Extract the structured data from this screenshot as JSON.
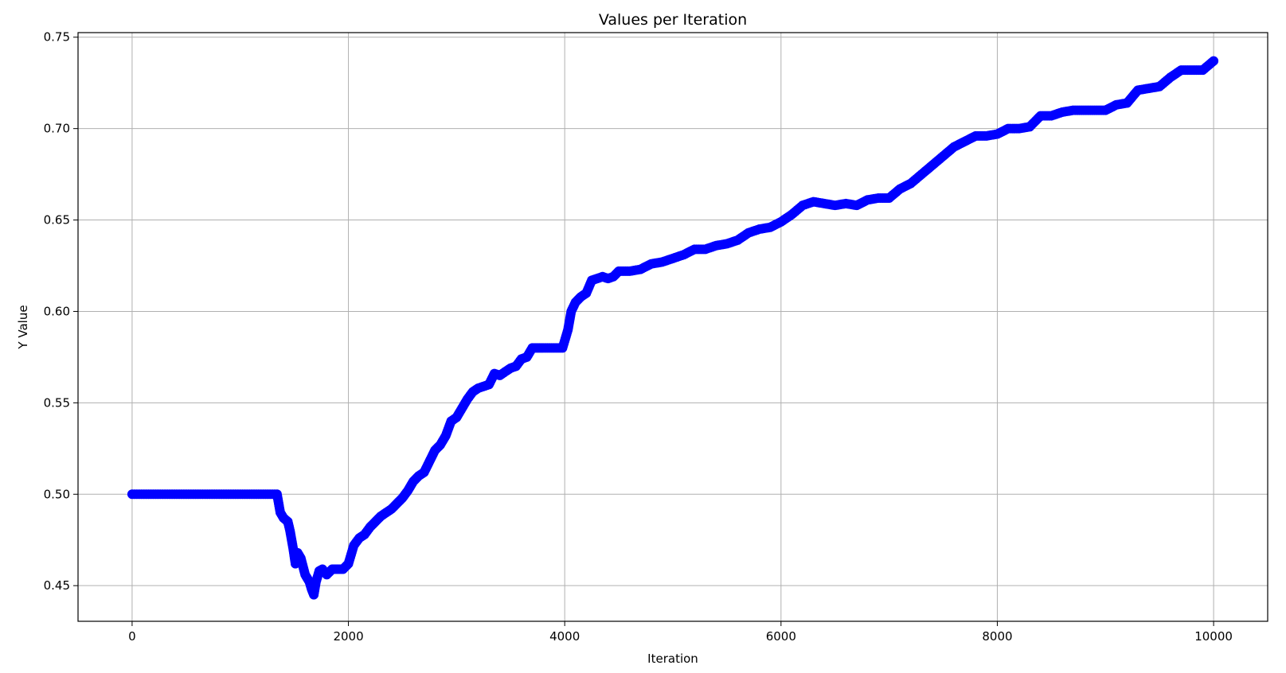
{
  "chart_data": {
    "type": "scatter",
    "title": "Values per Iteration",
    "xlabel": "Iteration",
    "ylabel": "Y Value",
    "xlim": [
      -500,
      10500
    ],
    "ylim": [
      0.4305,
      0.7525
    ],
    "xticks": [
      0,
      2000,
      4000,
      6000,
      8000,
      10000
    ],
    "xtick_labels": [
      "0",
      "2000",
      "4000",
      "6000",
      "8000",
      "10000"
    ],
    "yticks": [
      0.45,
      0.5,
      0.55,
      0.6,
      0.65,
      0.7,
      0.75
    ],
    "ytick_labels": [
      "0.45",
      "0.50",
      "0.55",
      "0.60",
      "0.65",
      "0.70",
      "0.75"
    ],
    "grid": true,
    "marker_color": "#0000ff",
    "series": [
      {
        "x": [
          0,
          500,
          1000,
          1340,
          1370,
          1400,
          1440,
          1460,
          1490,
          1510,
          1530,
          1560,
          1600,
          1640,
          1660,
          1680,
          1700,
          1730,
          1760,
          1800,
          1850,
          1900,
          1950,
          2000,
          2050,
          2100,
          2150,
          2200,
          2250,
          2300,
          2350,
          2400,
          2450,
          2500,
          2550,
          2600,
          2650,
          2700,
          2750,
          2800,
          2850,
          2900,
          2950,
          3000,
          3050,
          3100,
          3150,
          3200,
          3300,
          3350,
          3400,
          3450,
          3500,
          3550,
          3600,
          3650,
          3700,
          3750,
          3800,
          3900,
          3980,
          4030,
          4060,
          4100,
          4150,
          4200,
          4250,
          4300,
          4350,
          4400,
          4450,
          4500,
          4600,
          4700,
          4800,
          4900,
          5000,
          5100,
          5200,
          5300,
          5400,
          5500,
          5600,
          5700,
          5800,
          5900,
          6000,
          6100,
          6200,
          6300,
          6400,
          6500,
          6600,
          6700,
          6800,
          6900,
          7000,
          7100,
          7200,
          7300,
          7400,
          7500,
          7600,
          7700,
          7800,
          7900,
          8000,
          8100,
          8200,
          8300,
          8400,
          8500,
          8600,
          8700,
          8800,
          8900,
          9000,
          9100,
          9200,
          9300,
          9400,
          9500,
          9600,
          9700,
          9800,
          9900,
          10000
        ],
        "y": [
          0.5,
          0.5,
          0.5,
          0.5,
          0.49,
          0.487,
          0.485,
          0.48,
          0.47,
          0.462,
          0.468,
          0.465,
          0.456,
          0.452,
          0.448,
          0.445,
          0.452,
          0.458,
          0.459,
          0.456,
          0.459,
          0.459,
          0.459,
          0.462,
          0.472,
          0.476,
          0.478,
          0.482,
          0.485,
          0.488,
          0.49,
          0.492,
          0.495,
          0.498,
          0.502,
          0.507,
          0.51,
          0.512,
          0.518,
          0.524,
          0.527,
          0.532,
          0.54,
          0.542,
          0.547,
          0.552,
          0.556,
          0.558,
          0.56,
          0.566,
          0.565,
          0.567,
          0.569,
          0.57,
          0.574,
          0.575,
          0.58,
          0.58,
          0.58,
          0.58,
          0.58,
          0.59,
          0.6,
          0.605,
          0.608,
          0.61,
          0.617,
          0.618,
          0.619,
          0.618,
          0.619,
          0.622,
          0.622,
          0.623,
          0.626,
          0.627,
          0.629,
          0.631,
          0.634,
          0.634,
          0.636,
          0.637,
          0.639,
          0.643,
          0.645,
          0.646,
          0.649,
          0.653,
          0.658,
          0.66,
          0.659,
          0.658,
          0.659,
          0.658,
          0.661,
          0.662,
          0.662,
          0.667,
          0.67,
          0.675,
          0.68,
          0.685,
          0.69,
          0.693,
          0.696,
          0.696,
          0.697,
          0.7,
          0.7,
          0.701,
          0.707,
          0.707,
          0.709,
          0.71,
          0.71,
          0.71,
          0.71,
          0.713,
          0.714,
          0.721,
          0.722,
          0.723,
          0.728,
          0.732,
          0.732,
          0.732,
          0.737
        ]
      }
    ]
  }
}
